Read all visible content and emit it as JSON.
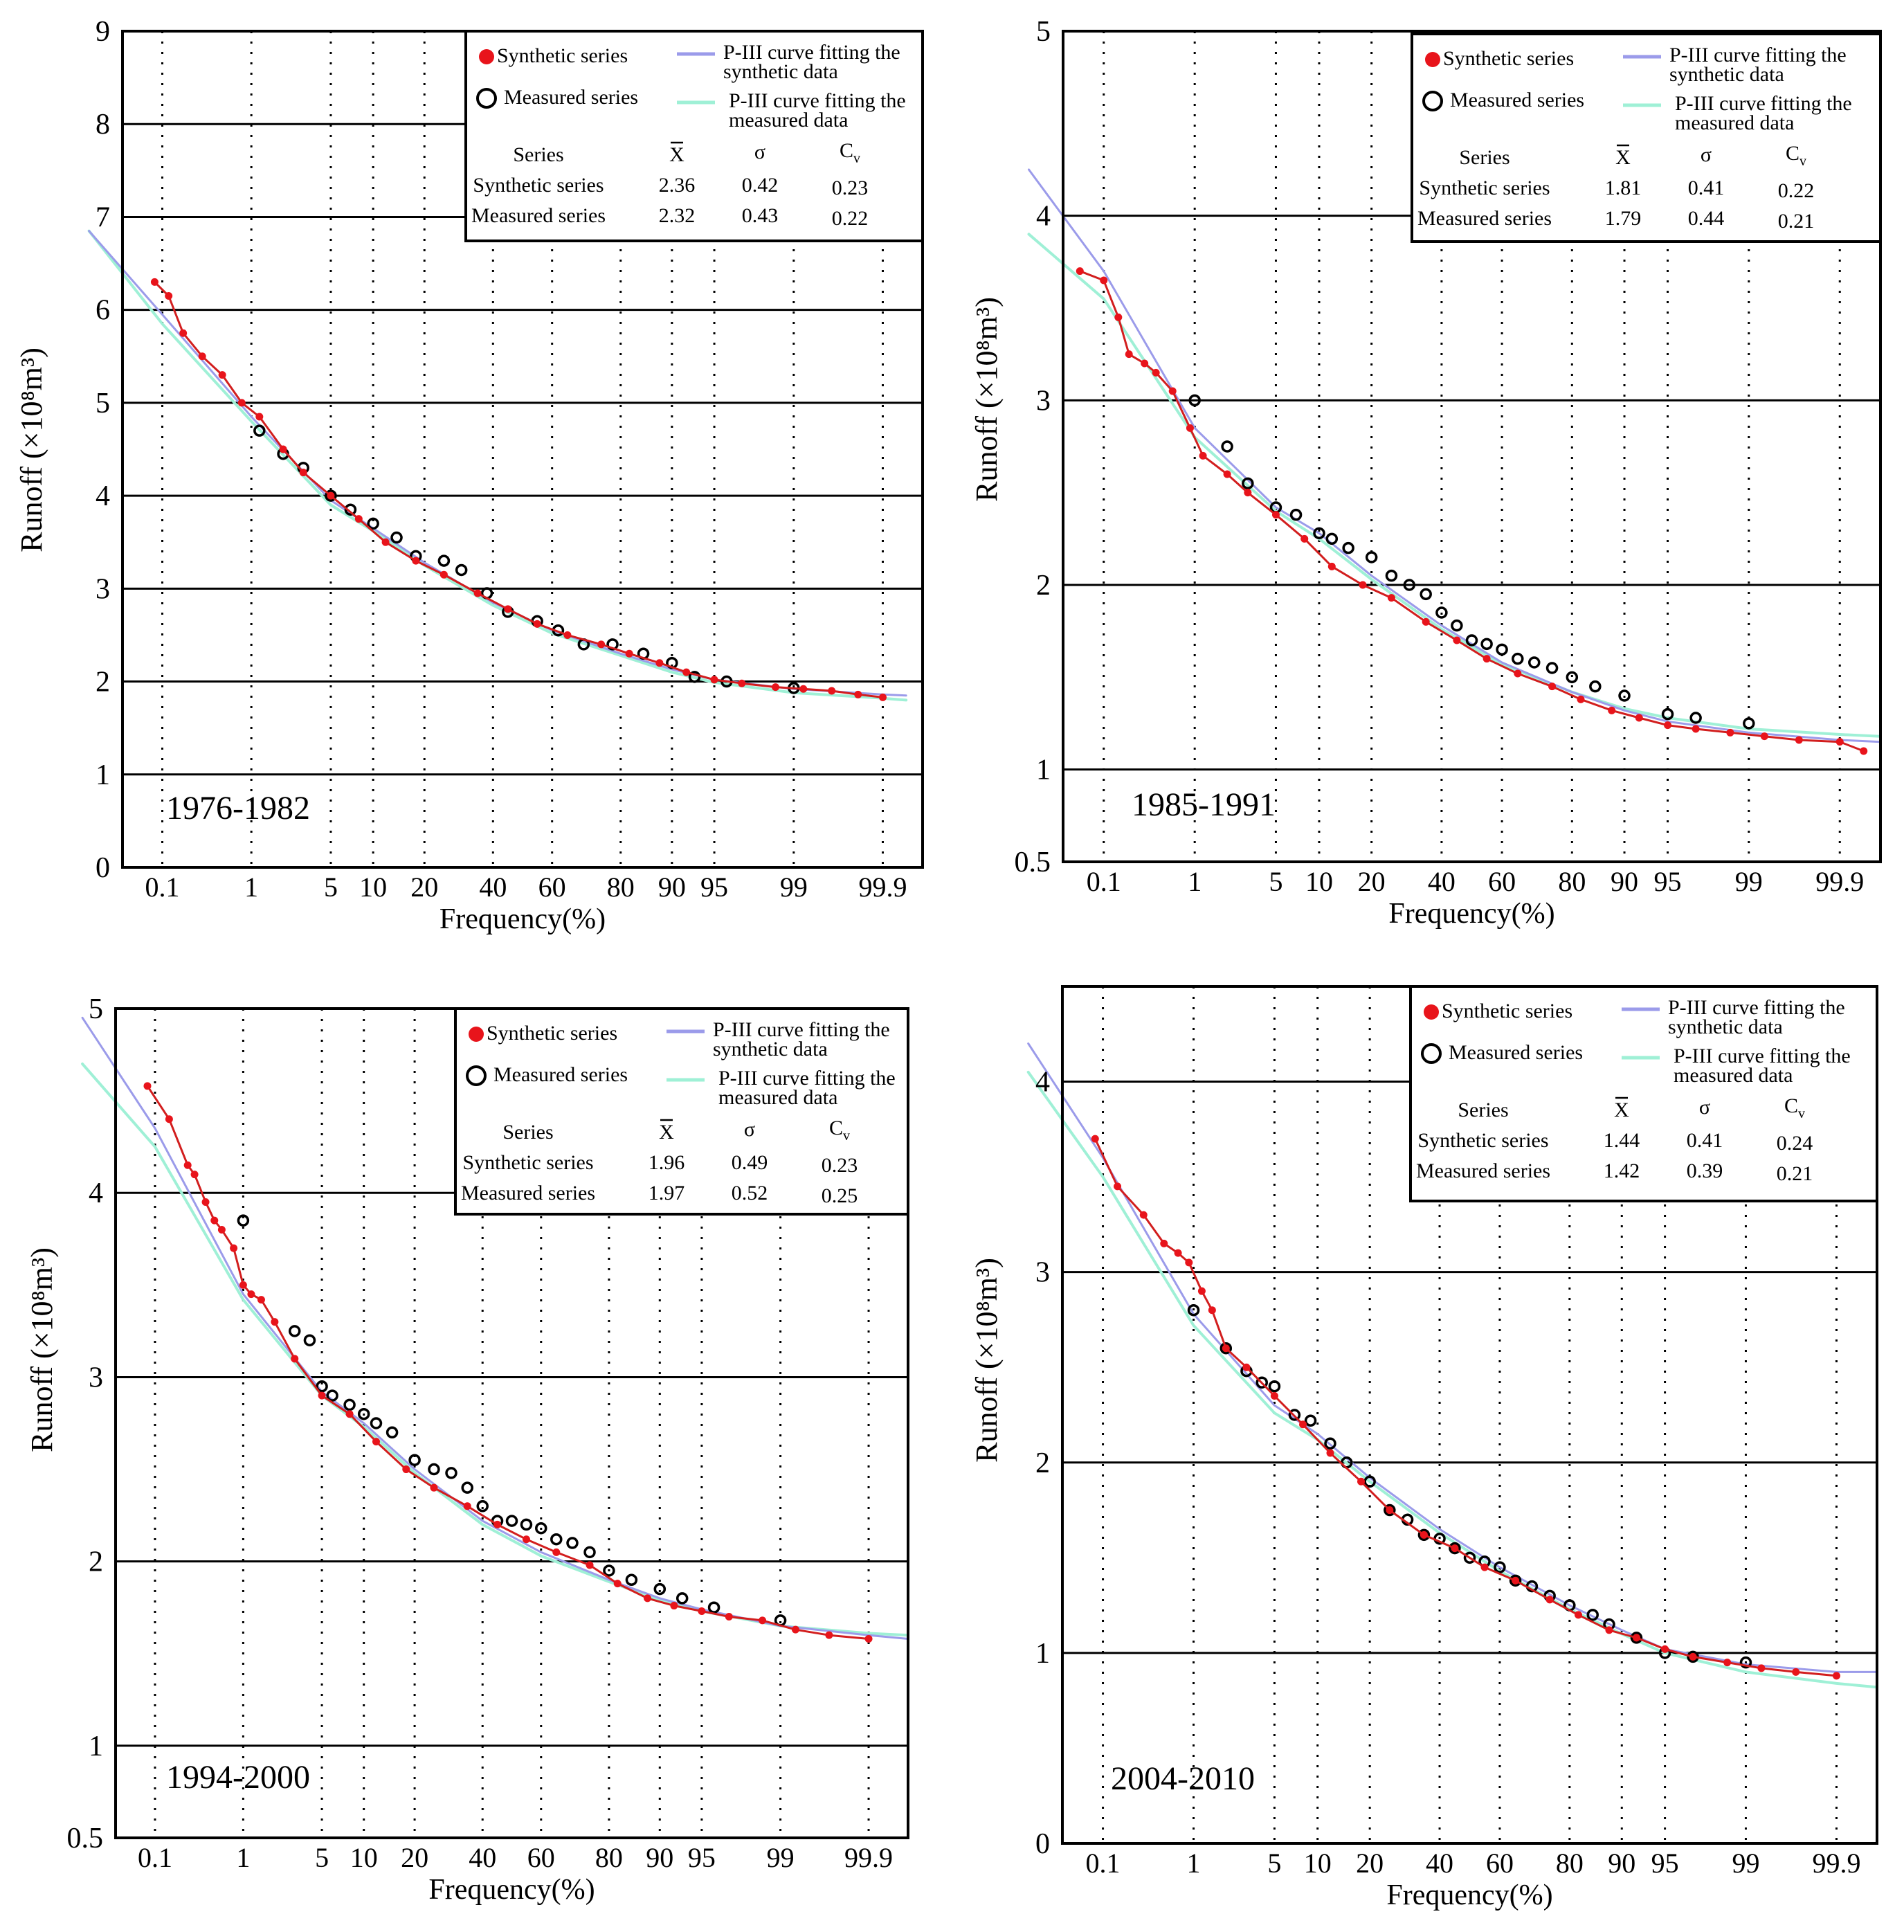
{
  "figure": {
    "xlabel_text": "Frequency",
    "xlabel_unit": "(%)",
    "ylabel_text": "Runoff",
    "ylabel_unit": "(×10⁸m³)"
  },
  "colors": {
    "synthetic_points": "#e8141b",
    "measured_points": "#000000",
    "synthetic_fit": "#9b9bea",
    "measured_fit": "#9ff0d6",
    "synthetic_line": "#d21e1e"
  },
  "legend": {
    "synthetic_series": "Synthetic series",
    "measured_series": "Measured series",
    "synthetic_fit_line1": "P-III curve fitting the",
    "synthetic_fit_line2": "synthetic data",
    "measured_fit_line1": "P-III curve fitting the",
    "measured_fit_line2": "measured data"
  },
  "stats_headers": {
    "series": "Series",
    "mean": "X",
    "sigma": "σ",
    "cv": "C",
    "cv_sub": "v"
  },
  "chart_data": [
    {
      "type": "scatter",
      "title": "1976-1982",
      "xlabel": "Frequency(%)",
      "ylabel": "Runoff (×10⁸m³)",
      "x_ticks": [
        "0.1",
        "1",
        "5",
        "10",
        "20",
        "40",
        "60",
        "80",
        "90",
        "95",
        "99",
        "99.9"
      ],
      "y_ticks": [
        "0",
        "1",
        "2",
        "3",
        "4",
        "5",
        "6",
        "7",
        "8",
        "9"
      ],
      "ylim": [
        0,
        9
      ],
      "grid": true,
      "legend_position": "top-right",
      "stats": [
        {
          "series": "Synthetic series",
          "mean": "2.36",
          "sigma": "0.42",
          "cv": "0.23"
        },
        {
          "series": "Measured series",
          "mean": "2.32",
          "sigma": "0.43",
          "cv": "0.22"
        }
      ],
      "series": [
        {
          "name": "Synthetic series",
          "x": [
            0.08,
            0.12,
            0.18,
            0.3,
            0.5,
            0.8,
            1.2,
            2,
            3,
            5,
            8,
            12,
            18,
            25,
            35,
            45,
            55,
            65,
            75,
            82,
            88,
            92,
            95,
            97,
            98.5,
            99.2,
            99.6,
            99.8,
            99.9
          ],
          "y": [
            6.3,
            6.15,
            5.75,
            5.5,
            5.3,
            5.0,
            4.85,
            4.5,
            4.25,
            4.0,
            3.75,
            3.5,
            3.3,
            3.15,
            2.95,
            2.78,
            2.62,
            2.5,
            2.4,
            2.3,
            2.2,
            2.1,
            2.02,
            1.98,
            1.94,
            1.92,
            1.9,
            1.86,
            1.83
          ]
        },
        {
          "name": "Measured series",
          "x": [
            1.2,
            2,
            3,
            5,
            7,
            10,
            14,
            18,
            25,
            30,
            38,
            45,
            55,
            62,
            70,
            78,
            85,
            90,
            93,
            96,
            99
          ],
          "y": [
            4.7,
            4.45,
            4.3,
            4.0,
            3.85,
            3.7,
            3.55,
            3.35,
            3.3,
            3.2,
            2.95,
            2.75,
            2.65,
            2.55,
            2.4,
            2.4,
            2.3,
            2.2,
            2.05,
            2.0,
            1.93
          ]
        },
        {
          "name": "P-III curve fitting the synthetic data",
          "x": [
            0.01,
            0.1,
            1,
            5,
            10,
            20,
            40,
            60,
            80,
            90,
            95,
            99,
            99.9,
            99.95
          ],
          "y": [
            6.85,
            5.95,
            4.85,
            3.95,
            3.65,
            3.28,
            2.85,
            2.55,
            2.3,
            2.13,
            2.02,
            1.92,
            1.86,
            1.85
          ]
        },
        {
          "name": "P-III curve fitting the measured data",
          "x": [
            0.01,
            0.1,
            1,
            5,
            10,
            20,
            40,
            60,
            80,
            90,
            95,
            99,
            99.9,
            99.95
          ],
          "y": [
            6.85,
            5.85,
            4.8,
            3.9,
            3.62,
            3.25,
            2.82,
            2.52,
            2.28,
            2.1,
            1.99,
            1.88,
            1.82,
            1.8
          ]
        }
      ]
    },
    {
      "type": "scatter",
      "title": "1985-1991",
      "xlabel": "Frequency (%)",
      "ylabel": "Runoff (×10⁸m³)",
      "x_ticks": [
        "0.1",
        "1",
        "5",
        "10",
        "20",
        "40",
        "60",
        "80",
        "90",
        "95",
        "99",
        "99.9"
      ],
      "y_ticks": [
        "0.5",
        "1",
        "2",
        "3",
        "4",
        "5"
      ],
      "ylim": [
        0.5,
        5
      ],
      "grid": true,
      "legend_position": "top-right",
      "stats": [
        {
          "series": "Synthetic series",
          "mean": "1.81",
          "sigma": "0.41",
          "cv": "0.22"
        },
        {
          "series": "Measured series",
          "mean": "1.79",
          "sigma": "0.44",
          "cv": "0.21"
        }
      ],
      "series": [
        {
          "name": "Synthetic series",
          "x": [
            0.05,
            0.1,
            0.15,
            0.2,
            0.3,
            0.4,
            0.6,
            0.9,
            1.2,
            2,
            3,
            5,
            8,
            12,
            18,
            25,
            35,
            45,
            55,
            65,
            75,
            82,
            88,
            92,
            95,
            97,
            98.5,
            99.3,
            99.7,
            99.9,
            99.95
          ],
          "y": [
            3.7,
            3.65,
            3.45,
            3.25,
            3.2,
            3.15,
            3.05,
            2.85,
            2.7,
            2.6,
            2.5,
            2.38,
            2.25,
            2.1,
            2.0,
            1.93,
            1.8,
            1.7,
            1.6,
            1.52,
            1.45,
            1.38,
            1.32,
            1.28,
            1.24,
            1.22,
            1.2,
            1.18,
            1.16,
            1.15,
            1.1
          ]
        },
        {
          "name": "Measured series",
          "x": [
            1,
            2,
            3,
            5,
            7,
            10,
            12,
            15,
            20,
            25,
            30,
            35,
            40,
            45,
            50,
            55,
            60,
            65,
            70,
            75,
            80,
            85,
            90,
            95,
            97,
            99
          ],
          "y": [
            3.0,
            2.75,
            2.55,
            2.42,
            2.38,
            2.28,
            2.25,
            2.2,
            2.15,
            2.05,
            2.0,
            1.95,
            1.85,
            1.78,
            1.7,
            1.68,
            1.65,
            1.6,
            1.58,
            1.55,
            1.5,
            1.45,
            1.4,
            1.3,
            1.28,
            1.25
          ]
        },
        {
          "name": "P-III curve fitting the synthetic data",
          "x": [
            0.01,
            0.1,
            1,
            5,
            10,
            20,
            40,
            60,
            80,
            90,
            95,
            99,
            99.9,
            99.97
          ],
          "y": [
            4.25,
            3.7,
            2.85,
            2.42,
            2.28,
            2.05,
            1.78,
            1.58,
            1.42,
            1.32,
            1.26,
            1.2,
            1.16,
            1.15
          ]
        },
        {
          "name": "P-III curve fitting the measured data",
          "x": [
            0.01,
            0.1,
            1,
            5,
            10,
            20,
            40,
            60,
            80,
            90,
            95,
            99,
            99.9,
            99.97
          ],
          "y": [
            3.9,
            3.55,
            2.8,
            2.4,
            2.25,
            2.03,
            1.76,
            1.57,
            1.42,
            1.33,
            1.28,
            1.22,
            1.19,
            1.18
          ]
        }
      ]
    },
    {
      "type": "scatter",
      "title": "1994-2000",
      "xlabel": "Frequency(%)",
      "ylabel": "Runoff (×10⁸m³)",
      "x_ticks": [
        "0.1",
        "1",
        "5",
        "10",
        "20",
        "40",
        "60",
        "80",
        "90",
        "95",
        "99",
        "99.9"
      ],
      "y_ticks": [
        "0.5",
        "1",
        "2",
        "3",
        "4",
        "5"
      ],
      "ylim": [
        0.5,
        5
      ],
      "grid": true,
      "legend_position": "top-right",
      "stats": [
        {
          "series": "Synthetic series",
          "mean": "1.96",
          "sigma": "0.49",
          "cv": "0.23"
        },
        {
          "series": "Measured series",
          "mean": "1.97",
          "sigma": "0.52",
          "cv": "0.25"
        }
      ],
      "series": [
        {
          "name": "Synthetic series",
          "x": [
            0.08,
            0.15,
            0.25,
            0.3,
            0.4,
            0.5,
            0.6,
            0.8,
            1,
            1.2,
            1.5,
            2,
            3,
            5,
            8,
            12,
            18,
            25,
            35,
            45,
            55,
            65,
            75,
            82,
            88,
            92,
            95,
            97,
            98.5,
            99.3,
            99.7,
            99.9
          ],
          "y": [
            4.58,
            4.4,
            4.15,
            4.1,
            3.95,
            3.85,
            3.8,
            3.7,
            3.5,
            3.45,
            3.42,
            3.3,
            3.1,
            2.9,
            2.8,
            2.65,
            2.5,
            2.4,
            2.3,
            2.2,
            2.12,
            2.05,
            1.98,
            1.88,
            1.8,
            1.76,
            1.73,
            1.7,
            1.68,
            1.63,
            1.6,
            1.58
          ]
        },
        {
          "name": "Measured series",
          "x": [
            1,
            3,
            4,
            5,
            6,
            8,
            10,
            12,
            15,
            20,
            25,
            30,
            35,
            40,
            45,
            50,
            55,
            60,
            65,
            70,
            75,
            80,
            85,
            90,
            93,
            96,
            99
          ],
          "y": [
            3.85,
            3.25,
            3.2,
            2.95,
            2.9,
            2.85,
            2.8,
            2.75,
            2.7,
            2.55,
            2.5,
            2.48,
            2.4,
            2.3,
            2.22,
            2.22,
            2.2,
            2.18,
            2.12,
            2.1,
            2.05,
            1.95,
            1.9,
            1.85,
            1.8,
            1.75,
            1.68
          ]
        },
        {
          "name": "P-III curve fitting the synthetic data",
          "x": [
            0.01,
            0.1,
            1,
            5,
            10,
            20,
            40,
            60,
            80,
            90,
            95,
            99,
            99.9,
            99.97
          ],
          "y": [
            4.95,
            4.35,
            3.45,
            2.92,
            2.75,
            2.5,
            2.22,
            2.05,
            1.9,
            1.8,
            1.74,
            1.65,
            1.6,
            1.58
          ]
        },
        {
          "name": "P-III curve fitting the measured data",
          "x": [
            0.01,
            0.1,
            1,
            5,
            10,
            20,
            40,
            60,
            80,
            90,
            95,
            99,
            99.9,
            99.97
          ],
          "y": [
            4.7,
            4.25,
            3.42,
            2.9,
            2.73,
            2.48,
            2.2,
            2.03,
            1.89,
            1.79,
            1.73,
            1.65,
            1.61,
            1.6
          ]
        }
      ]
    },
    {
      "type": "scatter",
      "title": "2004-2010",
      "xlabel": "Frequency(%)",
      "ylabel": "Runoff (×10⁸m³)",
      "x_ticks": [
        "0.1",
        "1",
        "5",
        "10",
        "20",
        "40",
        "60",
        "80",
        "90",
        "95",
        "99",
        "99.9"
      ],
      "y_ticks": [
        "0",
        "1",
        "2",
        "3",
        "4"
      ],
      "ylim": [
        0,
        4.5
      ],
      "grid": true,
      "legend_position": "top-right",
      "stats": [
        {
          "series": "Synthetic series",
          "mean": "1.44",
          "sigma": "0.41",
          "cv": "0.24"
        },
        {
          "series": "Measured series",
          "mean": "1.42",
          "sigma": "0.39",
          "cv": "0.21"
        }
      ],
      "series": [
        {
          "name": "Synthetic series",
          "x": [
            0.08,
            0.15,
            0.3,
            0.5,
            0.7,
            0.9,
            1.2,
            1.5,
            2,
            3,
            5,
            8,
            12,
            18,
            25,
            35,
            45,
            55,
            65,
            75,
            82,
            88,
            92,
            95,
            97,
            98.5,
            99.3,
            99.7,
            99.9
          ],
          "y": [
            3.7,
            3.45,
            3.3,
            3.15,
            3.1,
            3.05,
            2.9,
            2.8,
            2.6,
            2.5,
            2.35,
            2.2,
            2.05,
            1.9,
            1.75,
            1.62,
            1.55,
            1.45,
            1.38,
            1.28,
            1.2,
            1.12,
            1.08,
            1.02,
            0.98,
            0.95,
            0.92,
            0.9,
            0.88
          ]
        },
        {
          "name": "Measured series",
          "x": [
            1,
            2,
            3,
            4,
            5,
            7,
            9,
            12,
            15,
            20,
            25,
            30,
            35,
            40,
            45,
            50,
            55,
            60,
            65,
            70,
            75,
            80,
            85,
            88,
            92,
            95,
            97,
            99
          ],
          "y": [
            2.8,
            2.6,
            2.48,
            2.42,
            2.4,
            2.25,
            2.22,
            2.1,
            2.0,
            1.9,
            1.75,
            1.7,
            1.62,
            1.6,
            1.55,
            1.5,
            1.48,
            1.45,
            1.38,
            1.35,
            1.3,
            1.25,
            1.2,
            1.15,
            1.08,
            1.0,
            0.98,
            0.95
          ]
        },
        {
          "name": "P-III curve fitting the synthetic data",
          "x": [
            0.01,
            0.1,
            1,
            5,
            10,
            20,
            40,
            60,
            80,
            90,
            95,
            99,
            99.9,
            99.97
          ],
          "y": [
            4.2,
            3.6,
            2.78,
            2.3,
            2.15,
            1.92,
            1.65,
            1.45,
            1.25,
            1.12,
            1.02,
            0.94,
            0.9,
            0.9
          ]
        },
        {
          "name": "P-III curve fitting the measured data",
          "x": [
            0.01,
            0.1,
            1,
            5,
            10,
            20,
            40,
            60,
            80,
            90,
            95,
            99,
            99.9,
            99.97
          ],
          "y": [
            4.05,
            3.5,
            2.72,
            2.26,
            2.12,
            1.9,
            1.63,
            1.43,
            1.23,
            1.1,
            1.0,
            0.9,
            0.84,
            0.82
          ]
        }
      ]
    }
  ]
}
